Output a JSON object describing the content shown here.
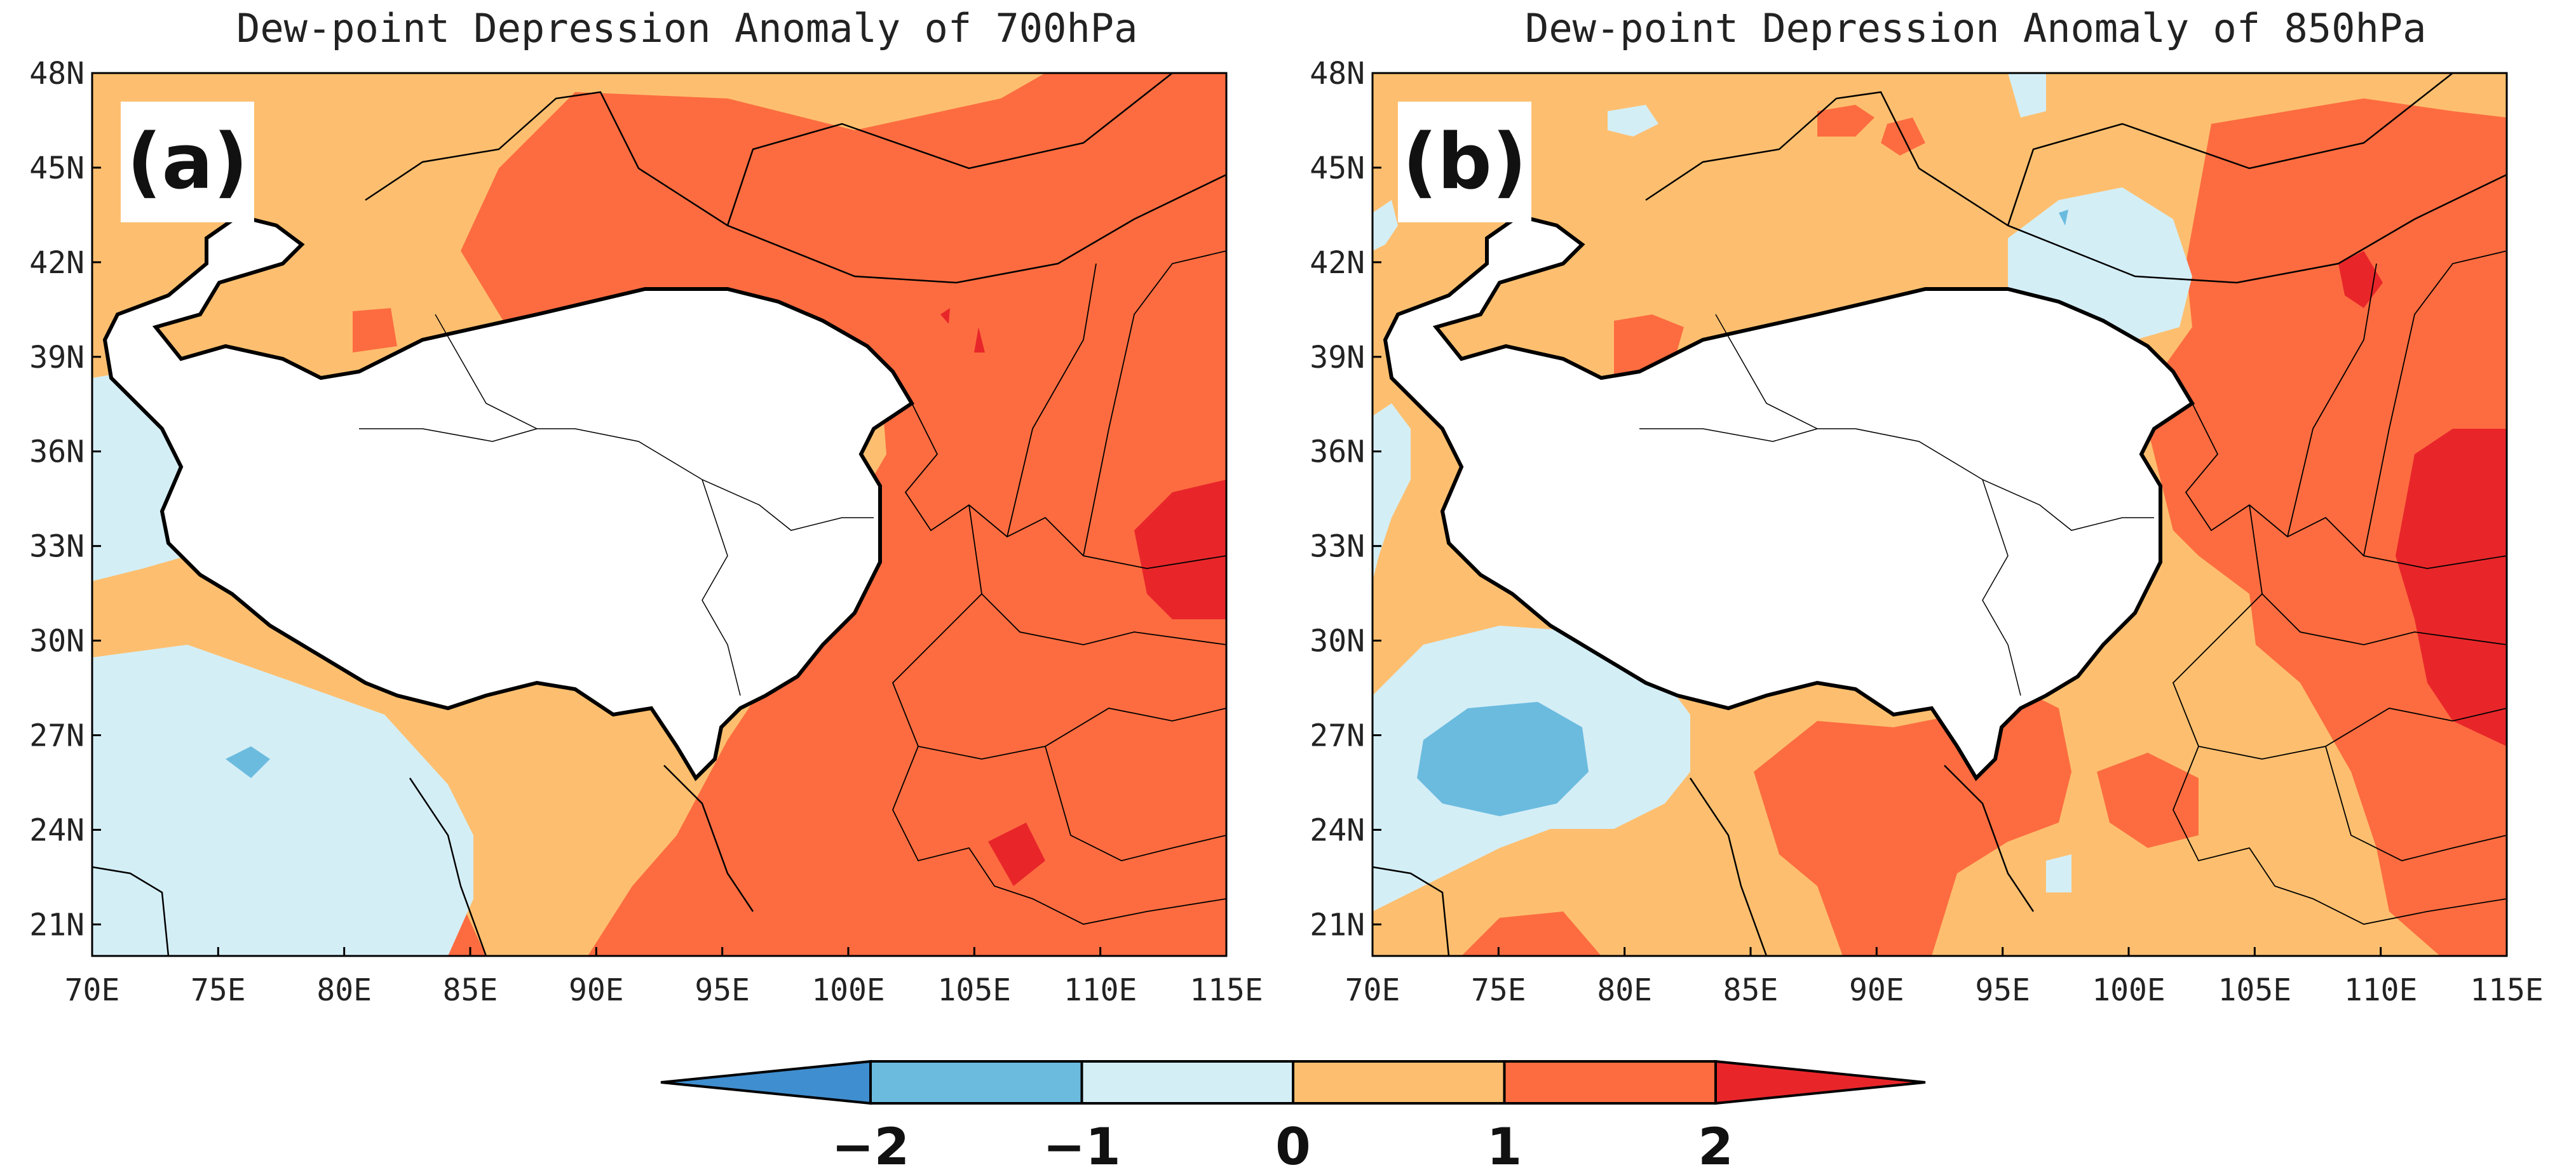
{
  "panels": [
    {
      "id": "a",
      "title": "Dew-point Depression Anomaly of 700hPa",
      "label": "(a)"
    },
    {
      "id": "b",
      "title": "Dew-point Depression Anomaly of 850hPa",
      "label": "(b)"
    }
  ],
  "axes": {
    "lat_ticks": [
      "48N",
      "45N",
      "42N",
      "39N",
      "36N",
      "33N",
      "30N",
      "27N",
      "24N",
      "21N"
    ],
    "lon_ticks": [
      "70E",
      "75E",
      "80E",
      "85E",
      "90E",
      "95E",
      "100E",
      "105E",
      "110E",
      "115E"
    ],
    "lat_range": [
      20,
      48
    ],
    "lon_range": [
      70,
      115
    ]
  },
  "colorbar": {
    "labels": [
      "−2",
      "−1",
      "0",
      "1",
      "2"
    ],
    "colors": [
      "#3f8ecf",
      "#6bbbdf",
      "#d4eef6",
      "#fdbf6f",
      "#fd6c40",
      "#e8262a"
    ]
  }
}
